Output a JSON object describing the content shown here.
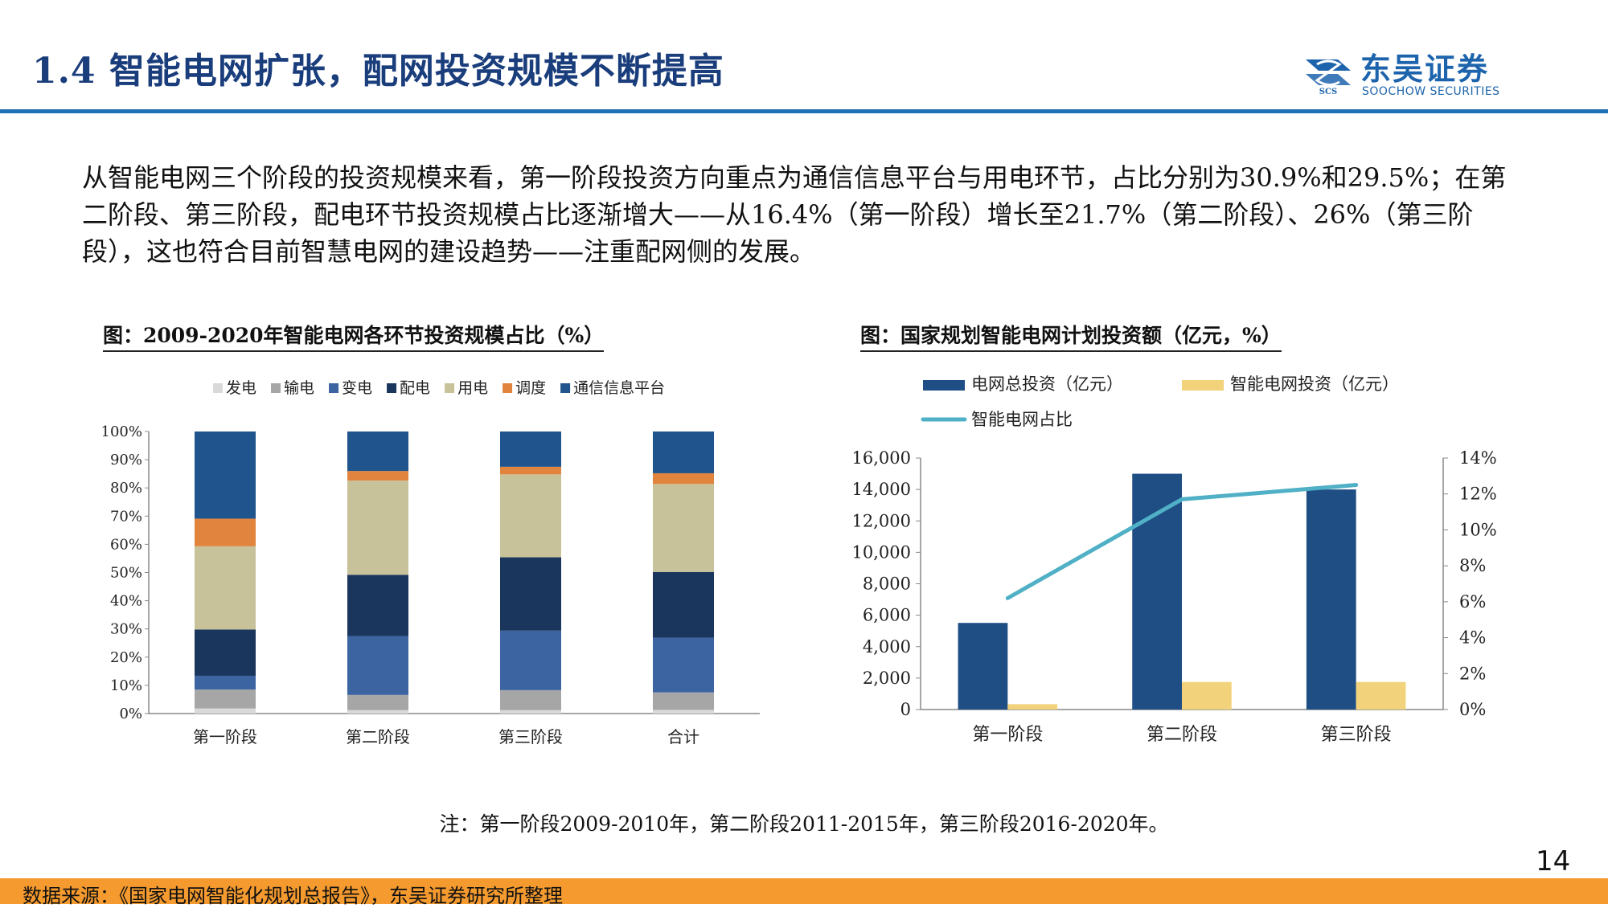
{
  "header": {
    "title": "1.4  智能电网扩张，配网投资规模不断提高",
    "logo_cn": "东吴证券",
    "logo_en": "SOOCHOW SECURITIES",
    "logo_mark_text": "SCS"
  },
  "body": {
    "paragraph": "从智能电网三个阶段的投资规模来看，第一阶段投资方向重点为通信信息平台与用电环节，占比分别为30.9%和29.5%；在第二阶段、第三阶段，配电环节投资规模占比逐渐增大——从16.4%（第一阶段）增长至21.7%（第二阶段）、26%（第三阶段），这也符合目前智慧电网的建设趋势——注重配网侧的发展。"
  },
  "colors": {
    "brand_blue": "#1a3d7c",
    "rule_blue": "#1f6fb6",
    "footer_orange": "#f49a2e"
  },
  "chart_data": [
    {
      "type": "bar",
      "stacked": true,
      "title": "图：2009-2020年智能电网各环节投资规模占比（%）",
      "categories": [
        "第一阶段",
        "第二阶段",
        "第三阶段",
        "合计"
      ],
      "y_ticks": [
        "0%",
        "10%",
        "20%",
        "30%",
        "40%",
        "50%",
        "60%",
        "70%",
        "80%",
        "90%",
        "100%"
      ],
      "ylim": [
        0,
        100
      ],
      "legend_position": "top",
      "series": [
        {
          "name": "发电",
          "color": "#d9d9d9",
          "values": [
            1.8,
            1.2,
            1.2,
            1.3
          ]
        },
        {
          "name": "输电",
          "color": "#a6a6a6",
          "values": [
            6.7,
            5.4,
            7.1,
            6.2
          ]
        },
        {
          "name": "变电",
          "color": "#3c64a0",
          "values": [
            4.9,
            20.9,
            21.1,
            19.4
          ]
        },
        {
          "name": "配电",
          "color": "#1b365d",
          "values": [
            16.4,
            21.7,
            26.0,
            23.3
          ]
        },
        {
          "name": "用电",
          "color": "#c8c29a",
          "values": [
            29.5,
            33.4,
            29.4,
            31.2
          ]
        },
        {
          "name": "调度",
          "color": "#e0843e",
          "values": [
            9.8,
            3.4,
            2.7,
            3.8
          ]
        },
        {
          "name": "通信信息平台",
          "color": "#20548c",
          "values": [
            30.9,
            14.0,
            12.5,
            14.8
          ]
        }
      ]
    },
    {
      "type": "bar",
      "title": "图：国家规划智能电网计划投资额（亿元，%）",
      "categories": [
        "第一阶段",
        "第二阶段",
        "第三阶段"
      ],
      "y_ticks": [
        "0",
        "2,000",
        "4,000",
        "6,000",
        "8,000",
        "10,000",
        "12,000",
        "14,000",
        "16,000"
      ],
      "ylim": [
        0,
        16000
      ],
      "y2_ticks": [
        "0%",
        "2%",
        "4%",
        "6%",
        "8%",
        "10%",
        "12%",
        "14%"
      ],
      "y2lim": [
        0,
        14
      ],
      "legend_position": "top",
      "series": [
        {
          "name": "电网总投资（亿元）",
          "type": "bar",
          "axis": "left",
          "color": "#1f4e85",
          "values": [
            5510,
            15000,
            14000
          ]
        },
        {
          "name": "智能电网投资（亿元）",
          "type": "bar",
          "axis": "left",
          "color": "#f2d27a",
          "values": [
            341,
            1750,
            1750
          ]
        },
        {
          "name": "智能电网占比",
          "type": "line",
          "axis": "right",
          "color": "#4fb0c6",
          "values": [
            6.2,
            11.7,
            12.5
          ]
        }
      ]
    }
  ],
  "note": "注：第一阶段2009-2010年，第二阶段2011-2015年，第三阶段2016-2020年。",
  "page_number": "14",
  "footer": {
    "source": "数据来源：《国家电网智能化规划总报告》，东吴证券研究所整理"
  }
}
